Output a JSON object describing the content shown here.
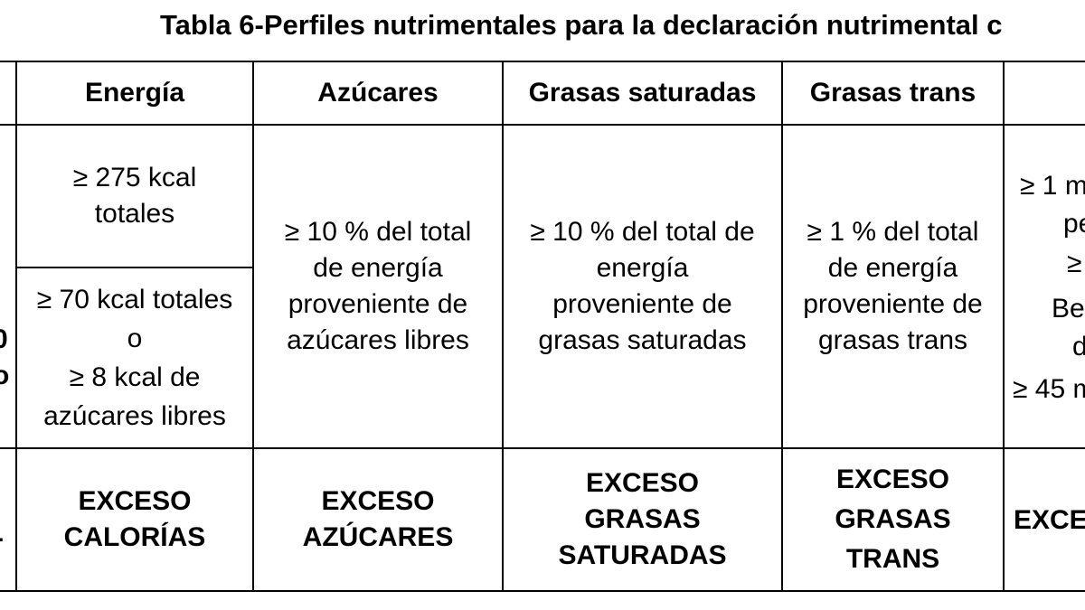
{
  "title": "Tabla 6-Perfiles nutrimentales para la declaración nutrimental c",
  "headers": {
    "energia": "Energía",
    "azucares": "Azúcares",
    "grasas_saturadas": "Grasas saturadas",
    "grasas_trans": "Grasas trans"
  },
  "row1": {
    "energia_top": [
      "≥ 275 kcal",
      "totales"
    ],
    "energia_bottom": [
      "≥ 70 kcal totales",
      "o",
      "≥ 8 kcal de",
      "azúcares libres"
    ],
    "azucares": [
      "≥ 10 % del total",
      "de energía",
      "proveniente de",
      "azúcares libres"
    ],
    "grasas_saturadas": [
      "≥ 10 % del total de",
      "energía",
      "proveniente de",
      "grasas saturadas"
    ],
    "grasas_trans": [
      "≥ 1 % del total",
      "de energía",
      "proveniente de",
      "grasas trans"
    ],
    "right_cut": [
      "≥ 1 m",
      "pe",
      "≥",
      "Be",
      "d",
      "≥ 45 m"
    ],
    "left_cut": [
      "0",
      "o"
    ]
  },
  "row2": {
    "energia": [
      "EXCESO",
      "CALORÍAS"
    ],
    "azucares": [
      "EXCESO",
      "AZÚCARES"
    ],
    "grasas_saturadas": [
      "EXCESO",
      "GRASAS",
      "SATURADAS"
    ],
    "grasas_trans": [
      "EXCESO",
      "GRASAS",
      "TRANS"
    ],
    "right_cut": "EXCE",
    "left_cut": "-"
  }
}
